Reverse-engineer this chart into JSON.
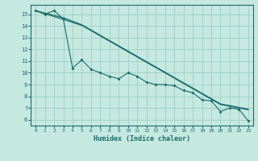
{
  "xlabel": "Humidex (Indice chaleur)",
  "background_color": "#c5e8e0",
  "grid_color": "#9ecfc5",
  "line_color": "#1a6b6b",
  "xlim": [
    -0.5,
    23.5
  ],
  "ylim": [
    5.5,
    15.8
  ],
  "x_ticks": [
    0,
    1,
    2,
    3,
    4,
    5,
    6,
    7,
    8,
    9,
    10,
    11,
    12,
    13,
    14,
    15,
    16,
    17,
    18,
    19,
    20,
    21,
    22,
    23
  ],
  "y_ticks": [
    6,
    7,
    8,
    9,
    10,
    11,
    12,
    13,
    14,
    15
  ],
  "wiggly_y": [
    15.3,
    15.0,
    15.3,
    14.6,
    10.4,
    11.1,
    10.3,
    10.0,
    9.7,
    9.5,
    10.0,
    9.7,
    9.2,
    9.0,
    9.0,
    8.9,
    8.5,
    8.3,
    7.7,
    7.6,
    6.7,
    7.0,
    6.9,
    5.9
  ],
  "line1_y": [
    15.3,
    15.05,
    14.8,
    14.55,
    14.3,
    14.05,
    13.6,
    13.15,
    12.7,
    12.25,
    11.8,
    11.35,
    10.9,
    10.45,
    10.0,
    9.55,
    9.1,
    8.65,
    8.2,
    7.75,
    7.3,
    7.15,
    7.0,
    6.85
  ],
  "line2_y": [
    15.3,
    15.1,
    14.9,
    14.7,
    14.4,
    14.1,
    13.65,
    13.2,
    12.75,
    12.3,
    11.85,
    11.4,
    10.95,
    10.5,
    10.05,
    9.6,
    9.15,
    8.7,
    8.25,
    7.8,
    7.35,
    7.2,
    7.05,
    6.9
  ]
}
